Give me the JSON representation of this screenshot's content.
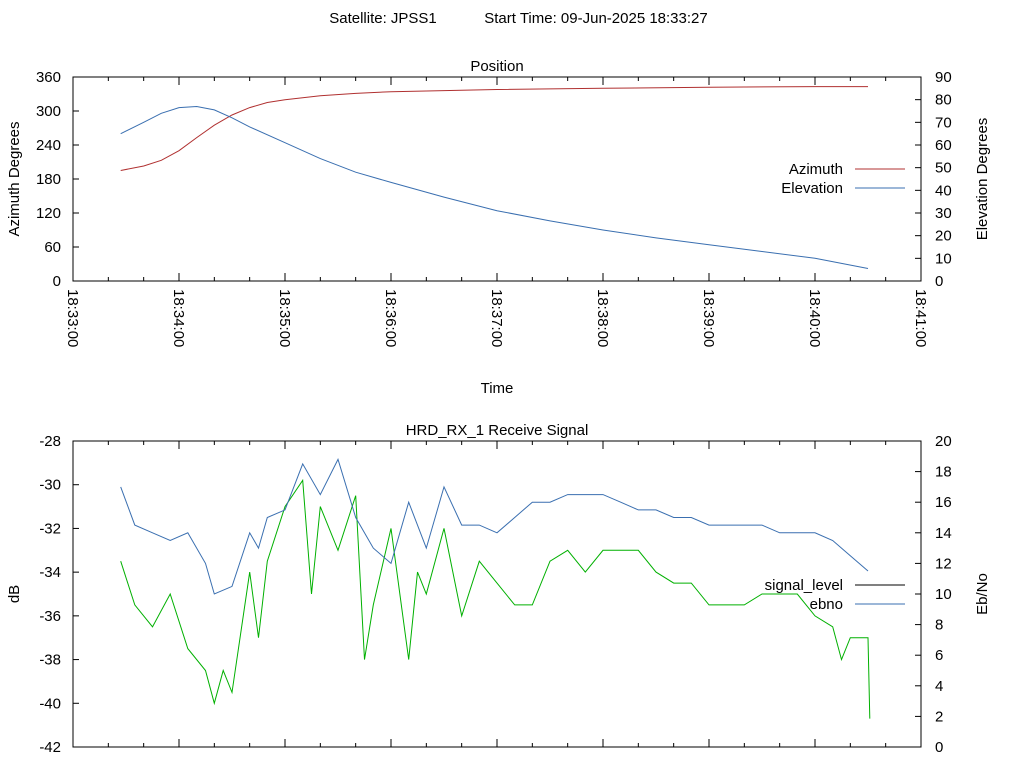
{
  "header": {
    "satellite_label": "Satellite: JPSS1",
    "start_time_label": "Start Time: 09-Jun-2025 18:33:27"
  },
  "chart_data": [
    {
      "type": "line",
      "title": "Position",
      "xlabel": "Time",
      "ylabel": "Azimuth Degrees",
      "y2label": "Elevation Degrees",
      "grid": false,
      "legend_position": "right",
      "xlim": [
        "18:33:00",
        "18:41:00"
      ],
      "ylim": [
        0,
        360
      ],
      "y2lim": [
        0,
        90
      ],
      "x_tick_labels": [
        "18:33:00",
        "18:34:00",
        "18:35:00",
        "18:36:00",
        "18:37:00",
        "18:38:00",
        "18:39:00",
        "18:40:00",
        "18:41:00"
      ],
      "y_tick_labels": [
        "0",
        "60",
        "120",
        "180",
        "240",
        "300",
        "360"
      ],
      "y2_tick_labels": [
        "0",
        "10",
        "20",
        "30",
        "40",
        "50",
        "60",
        "70",
        "80",
        "90"
      ],
      "series": [
        {
          "name": "Azimuth",
          "axis": "left",
          "color": "#b03030",
          "x": [
            "18:33:27",
            "18:33:40",
            "18:33:50",
            "18:34:00",
            "18:34:10",
            "18:34:20",
            "18:34:30",
            "18:34:40",
            "18:34:50",
            "18:35:00",
            "18:35:20",
            "18:35:40",
            "18:36:00",
            "18:36:30",
            "18:37:00",
            "18:38:00",
            "18:39:00",
            "18:40:00",
            "18:40:30"
          ],
          "values": [
            195,
            203,
            213,
            230,
            253,
            275,
            293,
            306,
            315,
            320,
            327,
            331,
            334,
            336,
            338,
            340,
            342,
            343,
            343
          ]
        },
        {
          "name": "Elevation",
          "axis": "right",
          "color": "#3a6fb0",
          "x": [
            "18:33:27",
            "18:33:40",
            "18:33:50",
            "18:34:00",
            "18:34:10",
            "18:34:20",
            "18:34:30",
            "18:34:40",
            "18:35:00",
            "18:35:20",
            "18:35:40",
            "18:36:00",
            "18:36:30",
            "18:37:00",
            "18:37:30",
            "18:38:00",
            "18:38:30",
            "18:39:00",
            "18:39:30",
            "18:40:00",
            "18:40:30"
          ],
          "values": [
            65,
            70,
            74,
            76.5,
            77,
            75.5,
            72,
            68,
            61,
            54,
            48,
            43.5,
            37,
            31,
            26.5,
            22.5,
            19,
            16,
            13,
            10,
            5.5
          ]
        }
      ]
    },
    {
      "type": "line",
      "title": "HRD_RX_1 Receive Signal",
      "xlabel": "",
      "ylabel": "dB",
      "y2label": "Eb/No",
      "grid": false,
      "legend_position": "right",
      "ylim": [
        -42,
        -28
      ],
      "y2lim": [
        0,
        20
      ],
      "y_tick_labels": [
        "-42",
        "-40",
        "-38",
        "-36",
        "-34",
        "-32",
        "-30",
        "-28"
      ],
      "y2_tick_labels": [
        "0",
        "2",
        "4",
        "6",
        "8",
        "10",
        "12",
        "14",
        "16",
        "18",
        "20"
      ],
      "series": [
        {
          "name": "signal_level",
          "axis": "left",
          "color": "#00b000",
          "legend_color": "#000000",
          "x": [
            "18:33:27",
            "18:33:35",
            "18:33:45",
            "18:33:55",
            "18:34:05",
            "18:34:15",
            "18:34:20",
            "18:34:25",
            "18:34:30",
            "18:34:40",
            "18:34:45",
            "18:34:50",
            "18:35:00",
            "18:35:10",
            "18:35:15",
            "18:35:20",
            "18:35:30",
            "18:35:40",
            "18:35:45",
            "18:35:50",
            "18:36:00",
            "18:36:10",
            "18:36:15",
            "18:36:20",
            "18:36:30",
            "18:36:40",
            "18:36:50",
            "18:37:00",
            "18:37:10",
            "18:37:20",
            "18:37:30",
            "18:37:40",
            "18:37:50",
            "18:38:00",
            "18:38:10",
            "18:38:20",
            "18:38:30",
            "18:38:40",
            "18:38:50",
            "18:39:00",
            "18:39:10",
            "18:39:20",
            "18:39:30",
            "18:39:40",
            "18:39:50",
            "18:40:00",
            "18:40:10",
            "18:40:15",
            "18:40:20",
            "18:40:30",
            "18:40:31"
          ],
          "values": [
            -33.5,
            -35.5,
            -36.5,
            -35,
            -37.5,
            -38.5,
            -40,
            -38.5,
            -39.5,
            -34,
            -37,
            -33.5,
            -31,
            -29.8,
            -35,
            -31,
            -33,
            -30.5,
            -38,
            -35.5,
            -32,
            -38,
            -34,
            -35,
            -32,
            -36,
            -33.5,
            -34.5,
            -35.5,
            -35.5,
            -33.5,
            -33,
            -34,
            -33,
            -33,
            -33,
            -34,
            -34.5,
            -34.5,
            -35.5,
            -35.5,
            -35.5,
            -35,
            -35,
            -35,
            -36,
            -36.5,
            -38,
            -37,
            -37,
            -40.7
          ]
        },
        {
          "name": "ebno",
          "axis": "right",
          "color": "#3a6fb0",
          "x": [
            "18:33:27",
            "18:33:35",
            "18:33:45",
            "18:33:55",
            "18:34:05",
            "18:34:15",
            "18:34:20",
            "18:34:30",
            "18:34:40",
            "18:34:45",
            "18:34:50",
            "18:35:00",
            "18:35:10",
            "18:35:20",
            "18:35:30",
            "18:35:40",
            "18:35:50",
            "18:36:00",
            "18:36:10",
            "18:36:20",
            "18:36:30",
            "18:36:40",
            "18:36:50",
            "18:37:00",
            "18:37:10",
            "18:37:20",
            "18:37:30",
            "18:37:40",
            "18:37:50",
            "18:38:00",
            "18:38:10",
            "18:38:20",
            "18:38:30",
            "18:38:40",
            "18:38:50",
            "18:39:00",
            "18:39:10",
            "18:39:20",
            "18:39:30",
            "18:39:40",
            "18:39:50",
            "18:40:00",
            "18:40:10",
            "18:40:20",
            "18:40:30"
          ],
          "values": [
            17,
            14.5,
            14,
            13.5,
            14,
            12,
            10,
            10.5,
            14,
            13,
            15,
            15.5,
            18.5,
            16.5,
            18.8,
            15,
            13,
            12,
            16,
            13,
            17,
            14.5,
            14.5,
            14,
            15,
            16,
            16,
            16.5,
            16.5,
            16.5,
            16,
            15.5,
            15.5,
            15,
            15,
            14.5,
            14.5,
            14.5,
            14.5,
            14,
            14,
            14,
            13.5,
            12.5,
            11.5
          ]
        }
      ]
    }
  ]
}
